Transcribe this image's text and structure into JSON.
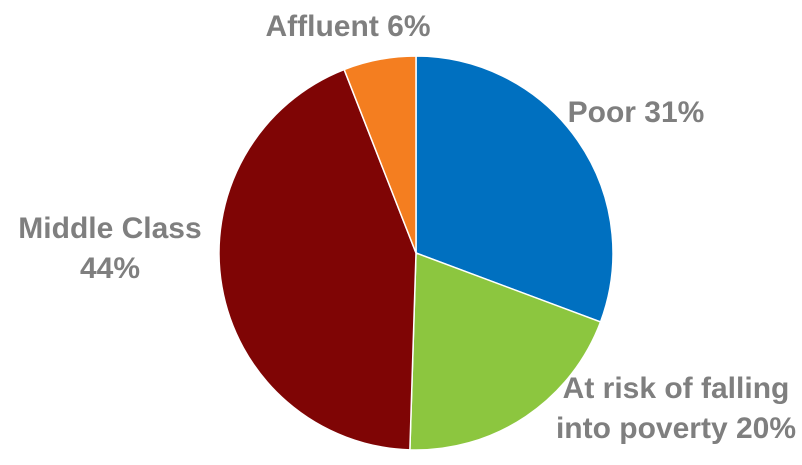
{
  "chart_data": {
    "type": "pie",
    "title": "",
    "start_angle_deg": 0,
    "direction": "clockwise",
    "slices": [
      {
        "name": "Poor",
        "value": 31,
        "label": [
          "Poor 31%"
        ],
        "color": "#0070C0"
      },
      {
        "name": "At risk of falling into poverty",
        "value": 20,
        "label": [
          "At risk of falling",
          "into poverty 20%"
        ],
        "color": "#8CC63F"
      },
      {
        "name": "Middle Class",
        "value": 44,
        "label": [
          "Middle Class",
          "44%"
        ],
        "color": "#7F0505"
      },
      {
        "name": "Affluent",
        "value": 6,
        "label": [
          "Affluent 6%"
        ],
        "color": "#F47E20"
      }
    ],
    "legend": "none",
    "label_color": "#7f7f7f"
  }
}
